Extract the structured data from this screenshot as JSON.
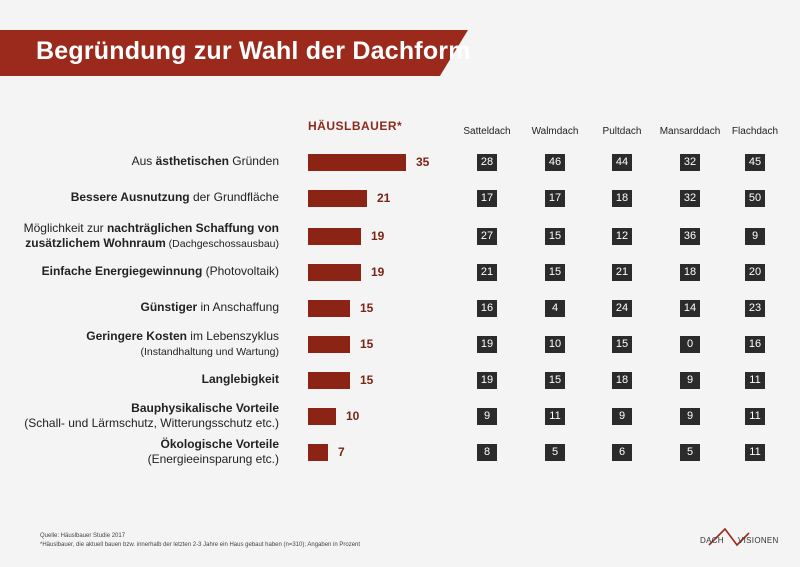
{
  "title": "Begründung zur Wahl der Dachform",
  "colors": {
    "accent": "#9c2a1c",
    "bar": "#8c2416",
    "cell": "#2b2b2b"
  },
  "chart_data": {
    "type": "table",
    "title": "Begründung zur Wahl der Dachform",
    "main_header": "HÄUSLBAUER*",
    "columns": [
      "Satteldach",
      "Walmdach",
      "Pultdach",
      "Mansarddach",
      "Flachdach"
    ],
    "rows": [
      {
        "label_parts": [
          {
            "t": "Aus ",
            "b": false
          },
          {
            "t": "ästhetischen",
            "b": true
          },
          {
            "t": " Gründen",
            "b": false
          }
        ],
        "label2": "",
        "value": 35,
        "values": [
          28,
          46,
          44,
          32,
          45
        ]
      },
      {
        "label_parts": [
          {
            "t": "Bessere Ausnutzung",
            "b": true
          },
          {
            "t": " der Grundfläche",
            "b": false
          }
        ],
        "label2": "",
        "value": 21,
        "values": [
          17,
          17,
          18,
          32,
          50
        ]
      },
      {
        "label_parts": [
          {
            "t": "Möglichkeit zur ",
            "b": false
          },
          {
            "t": "nachträglichen Schaffung von",
            "b": true
          }
        ],
        "label2_parts": [
          {
            "t": "zusätzlichem Wohnraum",
            "b": true
          },
          {
            "t": " (Dachgeschossausbau)",
            "b": false,
            "s": true
          }
        ],
        "value": 19,
        "values": [
          27,
          15,
          12,
          36,
          9
        ]
      },
      {
        "label_parts": [
          {
            "t": "Einfache Energiegewinnung",
            "b": true
          },
          {
            "t": " (Photovoltaik)",
            "b": false
          }
        ],
        "label2": "",
        "value": 19,
        "values": [
          21,
          15,
          21,
          18,
          20
        ]
      },
      {
        "label_parts": [
          {
            "t": "Günstiger",
            "b": true
          },
          {
            "t": " in Anschaffung",
            "b": false
          }
        ],
        "label2": "",
        "value": 15,
        "values": [
          16,
          4,
          24,
          14,
          23
        ]
      },
      {
        "label_parts": [
          {
            "t": "Geringere Kosten",
            "b": true
          },
          {
            "t": " im Lebenszyklus",
            "b": false
          }
        ],
        "label2_parts": [
          {
            "t": "(Instandhaltung und Wartung)",
            "b": false,
            "s": true
          }
        ],
        "value": 15,
        "values": [
          19,
          10,
          15,
          0,
          16
        ]
      },
      {
        "label_parts": [
          {
            "t": "Langlebigkeit",
            "b": true
          }
        ],
        "label2": "",
        "value": 15,
        "values": [
          19,
          15,
          18,
          9,
          11
        ]
      },
      {
        "label_parts": [
          {
            "t": "Bauphysikalische Vorteile",
            "b": true
          }
        ],
        "label2_parts": [
          {
            "t": "(Schall- und Lärmschutz, Witterungsschutz etc.)",
            "b": false
          }
        ],
        "value": 10,
        "values": [
          9,
          11,
          9,
          9,
          11
        ]
      },
      {
        "label_parts": [
          {
            "t": "Ökologische Vorteile",
            "b": true
          }
        ],
        "label2_parts": [
          {
            "t": "(Energieeinsparung etc.)",
            "b": false
          }
        ],
        "value": 7,
        "values": [
          8,
          5,
          6,
          5,
          11
        ]
      }
    ]
  },
  "footnotes": {
    "source": "Quelle: Häuslbauer Studie 2017",
    "note": "*Häuslbauer, die aktuell bauen bzw. innerhalb der letzten 2-3 Jahre ein Haus gebaut haben (n=310); Angaben in Prozent"
  },
  "logo": {
    "left": "DACH",
    "right": "VISIONEN"
  }
}
